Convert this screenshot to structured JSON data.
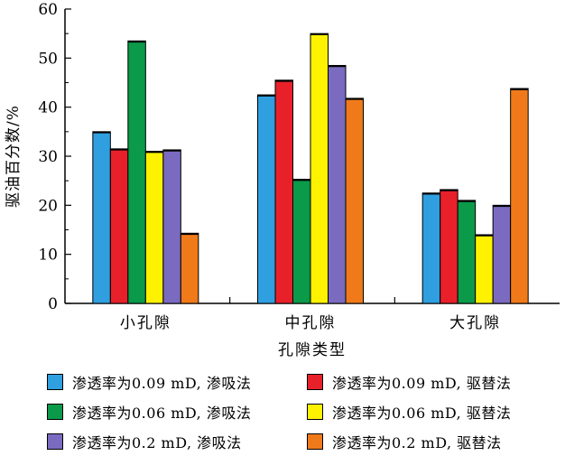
{
  "chart_data": {
    "type": "bar",
    "title": "",
    "xlabel": "孔隙类型",
    "ylabel": "驱油百分数/%",
    "ylim": [
      0,
      60
    ],
    "yticks": [
      0,
      10,
      20,
      30,
      40,
      50,
      60
    ],
    "categories": [
      "小孔隙",
      "中孔隙",
      "大孔隙"
    ],
    "series": [
      {
        "name": "渗透率为0.09 mD, 渗吸法",
        "color": "#2f9fe0",
        "values": [
          35.0,
          42.5,
          22.5
        ]
      },
      {
        "name": "渗透率为0.09 mD, 驱替法",
        "color": "#e8202a",
        "values": [
          31.5,
          45.5,
          23.2
        ]
      },
      {
        "name": "渗透率为0.06 mD, 渗吸法",
        "color": "#0a9a4a",
        "values": [
          53.5,
          25.3,
          21.0
        ]
      },
      {
        "name": "渗透率为0.06 mD, 驱替法",
        "color": "#fff200",
        "values": [
          31.0,
          55.0,
          14.0
        ]
      },
      {
        "name": "渗透率为0.2 mD, 渗吸法",
        "color": "#7a6bc0",
        "values": [
          31.3,
          48.5,
          20.0
        ]
      },
      {
        "name": "渗透率为0.2 mD, 驱替法",
        "color": "#f07a1a",
        "values": [
          14.3,
          41.8,
          43.8
        ]
      }
    ],
    "legend_placement": "bottom",
    "grid": false
  }
}
